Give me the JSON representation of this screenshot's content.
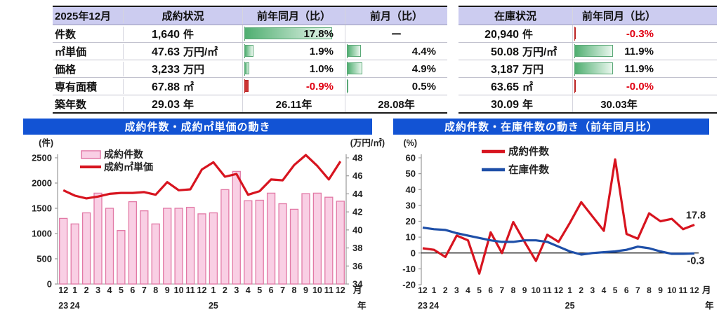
{
  "colors": {
    "table_header_bg": "#ccccf0",
    "chart_title_bg": "#1253d4",
    "positive_bar_start": "#4fae70",
    "positive_bar_end": "#eaf7ee",
    "negative_bar": "#cc3333",
    "negative_text": "#e00012",
    "pink_bar_fill": "#f9cfe4",
    "pink_bar_stroke": "#e279a6",
    "line_red": "#d7141f",
    "line_blue": "#1e4fa8",
    "axis": "#999999"
  },
  "summary_tables": {
    "left": {
      "header": {
        "period": "2025年12月",
        "status": "成約状況",
        "yoy": "前年同月（比）",
        "mom": "前月（比）"
      },
      "rows": [
        {
          "label": "件数",
          "num": "1,640",
          "unit": "件",
          "yoy_pct": 17.8,
          "yoy_text": "17.8%",
          "mom_text": "ー"
        },
        {
          "label": "㎡単価",
          "num": "47.63",
          "unit": "万円/㎡",
          "yoy_pct": 1.9,
          "yoy_text": "1.9%",
          "mom_pct": 4.4,
          "mom_text": "4.4%"
        },
        {
          "label": "価格",
          "num": "3,233",
          "unit": "万円",
          "yoy_pct": 1.0,
          "yoy_text": "1.0%",
          "mom_pct": 4.9,
          "mom_text": "4.9%"
        },
        {
          "label": "専有面積",
          "num": "67.88",
          "unit": "㎡",
          "yoy_pct": -0.9,
          "yoy_text": "-0.9%",
          "mom_pct": 0.5,
          "mom_text": "0.5%"
        },
        {
          "label": "築年数",
          "num": "29.03",
          "unit": "年",
          "yoy_text": "26.11年",
          "mom_text": "28.08年"
        }
      ]
    },
    "right": {
      "header": {
        "status": "在庫状況",
        "yoy": "前年同月（比）"
      },
      "rows": [
        {
          "num": "20,940",
          "unit": "件",
          "yoy_pct": -0.3,
          "yoy_text": "-0.3%"
        },
        {
          "num": "50.08",
          "unit": "万円/㎡",
          "yoy_pct": 11.9,
          "yoy_text": "11.9%"
        },
        {
          "num": "3,187",
          "unit": "万円",
          "yoy_pct": 11.9,
          "yoy_text": "11.9%"
        },
        {
          "num": "63.65",
          "unit": "㎡",
          "yoy_pct": -0.0,
          "yoy_text": "-0.0%"
        },
        {
          "num": "30.09",
          "unit": "年",
          "yoy_text": "30.03年"
        }
      ]
    }
  },
  "chart_data": [
    {
      "type": "bar",
      "title": "成約件数・成約㎡単価の動き",
      "unit_left": "(件)",
      "unit_right": "(万円/㎡)",
      "x_month_labels": [
        "12",
        "1",
        "2",
        "3",
        "4",
        "5",
        "6",
        "7",
        "8",
        "9",
        "10",
        "11",
        "12",
        "1",
        "2",
        "3",
        "4",
        "5",
        "6",
        "7",
        "8",
        "9",
        "10",
        "11",
        "12"
      ],
      "x_year_marks": [
        {
          "index": 0,
          "label": "23"
        },
        {
          "index": 1,
          "label": "24"
        },
        {
          "index": 13,
          "label": "25"
        }
      ],
      "x_suffix_month": "月",
      "x_suffix_year": "年",
      "bars": {
        "name": "成約件数",
        "values": [
          1300,
          1190,
          1410,
          1800,
          1500,
          1060,
          1630,
          1450,
          1190,
          1500,
          1500,
          1520,
          1390,
          1410,
          1870,
          2230,
          1650,
          1660,
          1800,
          1590,
          1480,
          1790,
          1800,
          1720,
          1640
        ]
      },
      "line": {
        "name": "成約㎡単価",
        "values": [
          44.4,
          43.8,
          43.5,
          43.7,
          44.0,
          44.1,
          44.1,
          44.2,
          43.9,
          45.3,
          44.4,
          44.5,
          46.7,
          47.5,
          45.9,
          46.2,
          43.9,
          44.3,
          45.6,
          45.5,
          47.2,
          48.3,
          47.1,
          45.6,
          47.6
        ]
      },
      "ylim_left": [
        0,
        2500
      ],
      "yticks_left": [
        0,
        500,
        1000,
        1500,
        2000,
        2500
      ],
      "ylim_right": [
        34,
        48
      ],
      "yticks_right": [
        34,
        36,
        38,
        40,
        42,
        44,
        46,
        48
      ],
      "grid": false,
      "legend_position": "top-left-inside"
    },
    {
      "type": "line",
      "title": "成約件数・在庫件数の動き（前年同月比）",
      "unit_left": "(%)",
      "x_month_labels": [
        "12",
        "1",
        "2",
        "3",
        "4",
        "5",
        "6",
        "7",
        "8",
        "9",
        "10",
        "11",
        "12",
        "1",
        "2",
        "3",
        "4",
        "5",
        "6",
        "7",
        "8",
        "9",
        "10",
        "11",
        "12"
      ],
      "x_year_marks": [
        {
          "index": 0,
          "label": "23"
        },
        {
          "index": 1,
          "label": "24"
        },
        {
          "index": 13,
          "label": "25"
        }
      ],
      "x_suffix_month": "月",
      "x_suffix_year": "年",
      "series": [
        {
          "name": "成約件数",
          "color": "#d7141f",
          "values": [
            3,
            2,
            -2.5,
            11,
            8,
            -13,
            13,
            0,
            19.5,
            7,
            -5,
            11.5,
            7,
            19,
            32,
            23,
            14,
            59,
            12,
            9,
            25,
            20,
            21.5,
            15,
            17.8
          ]
        },
        {
          "name": "在庫件数",
          "color": "#1e4fa8",
          "values": [
            16,
            15,
            14.5,
            12.5,
            11,
            9.5,
            8,
            7,
            7,
            8,
            8,
            7,
            4,
            1,
            -1,
            0,
            0.5,
            1,
            2,
            4,
            3,
            1,
            -0.5,
            -0.5,
            -0.3
          ]
        }
      ],
      "end_labels": [
        {
          "text": "17.8",
          "series": 0,
          "color": "#333333"
        },
        {
          "text": "-0.3",
          "series": 1,
          "color": "#e00012"
        }
      ],
      "ylim": [
        -20,
        60
      ],
      "yticks": [
        60,
        50,
        40,
        30,
        20,
        10,
        0,
        -10,
        -20
      ],
      "grid": false,
      "legend_position": "top-inside",
      "zero_line": true
    }
  ]
}
